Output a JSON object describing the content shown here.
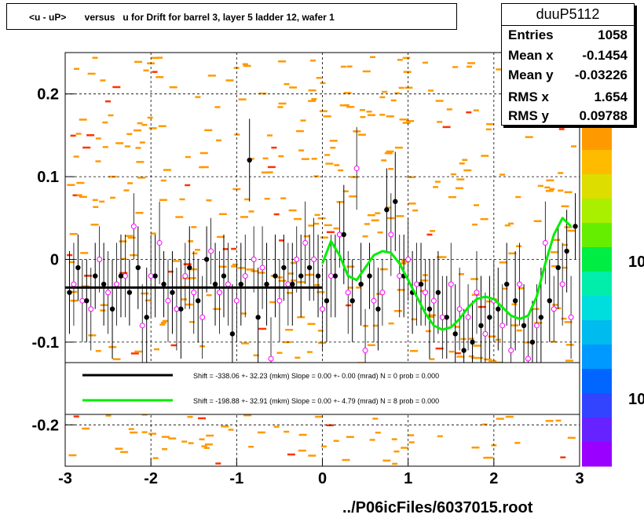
{
  "title": "<u - uP>       versus   u for Drift for barrel 3, layer 5 ladder 12, wafer 1",
  "stats": {
    "name": "duuP5112",
    "rows": [
      {
        "label": "Entries",
        "value": "1058"
      },
      {
        "label": "Mean x",
        "value": "-0.1454"
      },
      {
        "label": "Mean y",
        "value": "-0.03226"
      },
      {
        "label": "RMS x",
        "value": "1.654"
      },
      {
        "label": "RMS y",
        "value": "0.09788"
      }
    ]
  },
  "legend": [
    {
      "text": "Shift =  -338.06 +- 32.23 (mkm) Slope =     0.00 +- 0.00 (mrad)  N = 0 prob = 0.000",
      "color": "#000000"
    },
    {
      "text": "Shift =  -198.88 +- 32.91 (mkm) Slope =     0.00 +- 4.79 (mrad)  N = 8 prob = 0.000",
      "color": "#00ee00"
    }
  ],
  "footer": "../P06icFiles/6037015.root",
  "colors": {
    "heat_cell": "#ff9900",
    "profile": "#000000",
    "profile_alt": "#ff00ff",
    "fit_flat": "#000000",
    "fit_curve": "#00ee00"
  },
  "palette_labels": [
    "10",
    "10"
  ],
  "chart_data": {
    "type": "scatter",
    "xlim": [
      -3,
      3
    ],
    "ylim": [
      -0.25,
      0.25
    ],
    "x_ticks": [
      -3,
      -2,
      -1,
      0,
      1,
      2,
      3
    ],
    "y_ticks": [
      -0.2,
      -0.1,
      0,
      0.1,
      0.2
    ],
    "x_tick_labels": [
      "-3",
      "-2",
      "-1",
      "0",
      "1",
      "2",
      "3"
    ],
    "y_tick_labels": [
      "-0.2",
      "-0.1",
      "0",
      "0.1",
      "0.2"
    ],
    "grid": true,
    "profile_points": {
      "x": [
        -2.95,
        -2.85,
        -2.75,
        -2.65,
        -2.55,
        -2.45,
        -2.35,
        -2.25,
        -2.15,
        -2.05,
        -1.95,
        -1.85,
        -1.75,
        -1.65,
        -1.55,
        -1.45,
        -1.35,
        -1.25,
        -1.15,
        -1.05,
        -0.95,
        -0.85,
        -0.75,
        -0.65,
        -0.55,
        -0.45,
        -0.35,
        -0.25,
        -0.15,
        -0.05,
        0.05,
        0.15,
        0.25,
        0.35,
        0.45,
        0.55,
        0.65,
        0.75,
        0.85,
        0.95,
        1.05,
        1.15,
        1.25,
        1.35,
        1.45,
        1.55,
        1.65,
        1.75,
        1.85,
        1.95,
        2.05,
        2.15,
        2.25,
        2.35,
        2.45,
        2.55,
        2.65,
        2.75,
        2.85,
        2.95
      ],
      "y": [
        -0.04,
        -0.01,
        -0.05,
        -0.02,
        -0.03,
        -0.06,
        -0.02,
        -0.04,
        -0.01,
        -0.07,
        -0.02,
        -0.03,
        -0.04,
        -0.06,
        -0.01,
        -0.05,
        0.0,
        -0.03,
        -0.02,
        -0.09,
        -0.03,
        0.12,
        -0.07,
        -0.03,
        -0.02,
        -0.01,
        -0.03,
        -0.02,
        -0.01,
        -0.02,
        -0.05,
        -0.02,
        0.03,
        -0.05,
        -0.03,
        -0.02,
        -0.06,
        0.06,
        0.07,
        -0.02,
        -0.04,
        -0.03,
        -0.06,
        -0.04,
        -0.07,
        -0.09,
        -0.11,
        -0.1,
        -0.08,
        -0.07,
        -0.06,
        -0.03,
        -0.05,
        -0.08,
        -0.1,
        -0.07,
        -0.05,
        -0.01,
        0.01,
        0.04
      ],
      "err": [
        0.05,
        0.04,
        0.05,
        0.04,
        0.05,
        0.06,
        0.05,
        0.04,
        0.05,
        0.06,
        0.05,
        0.04,
        0.05,
        0.06,
        0.05,
        0.05,
        0.04,
        0.05,
        0.05,
        0.06,
        0.05,
        0.05,
        0.06,
        0.05,
        0.05,
        0.04,
        0.05,
        0.05,
        0.04,
        0.05,
        0.05,
        0.05,
        0.06,
        0.05,
        0.05,
        0.04,
        0.05,
        0.05,
        0.06,
        0.05,
        0.05,
        0.05,
        0.06,
        0.05,
        0.05,
        0.06,
        0.05,
        0.05,
        0.06,
        0.05,
        0.05,
        0.05,
        0.06,
        0.05,
        0.05,
        0.06,
        0.05,
        0.05,
        0.05,
        0.04
      ]
    },
    "alt_points": {
      "x": [
        -2.9,
        -2.8,
        -2.7,
        -2.6,
        -2.5,
        -2.4,
        -2.3,
        -2.2,
        -2.1,
        -2.0,
        -1.9,
        -1.8,
        -1.7,
        -1.6,
        -1.5,
        -1.4,
        -1.3,
        -1.2,
        -1.1,
        -1.0,
        -0.9,
        -0.8,
        -0.7,
        -0.6,
        -0.5,
        -0.4,
        -0.3,
        -0.2,
        -0.1,
        0.0,
        0.1,
        0.2,
        0.3,
        0.4,
        0.5,
        0.6,
        0.7,
        0.8,
        0.9,
        1.0,
        1.1,
        1.2,
        1.3,
        1.4,
        1.5,
        1.6,
        1.7,
        1.8,
        1.9,
        2.0,
        2.1,
        2.2,
        2.3,
        2.4,
        2.5,
        2.6,
        2.7,
        2.8,
        2.9
      ],
      "y": [
        -0.03,
        -0.05,
        -0.06,
        0.0,
        -0.04,
        -0.03,
        -0.02,
        0.04,
        -0.08,
        -0.02,
        0.02,
        -0.05,
        -0.06,
        -0.02,
        -0.04,
        -0.07,
        0.01,
        -0.04,
        -0.03,
        -0.05,
        -0.02,
        0.0,
        -0.01,
        -0.12,
        -0.05,
        -0.03,
        0.0,
        0.02,
        0.0,
        -0.06,
        -0.02,
        0.03,
        -0.04,
        0.11,
        -0.11,
        -0.05,
        -0.04,
        0.03,
        -0.02,
        0.0,
        -0.03,
        -0.04,
        -0.05,
        -0.07,
        -0.03,
        -0.06,
        -0.07,
        -0.04,
        -0.09,
        -0.05,
        -0.08,
        -0.11,
        -0.03,
        -0.12,
        -0.08,
        0.02,
        -0.06,
        -0.03,
        -0.07
      ],
      "err": [
        0.05,
        0.05,
        0.05,
        0.04,
        0.05,
        0.05,
        0.05,
        0.04,
        0.05,
        0.05,
        0.05,
        0.05,
        0.05,
        0.04,
        0.05,
        0.05,
        0.04,
        0.05,
        0.05,
        0.05,
        0.05,
        0.04,
        0.05,
        0.05,
        0.05,
        0.05,
        0.04,
        0.05,
        0.05,
        0.05,
        0.05,
        0.04,
        0.05,
        0.05,
        0.05,
        0.05,
        0.04,
        0.05,
        0.05,
        0.05,
        0.05,
        0.04,
        0.05,
        0.05,
        0.05,
        0.05,
        0.04,
        0.05,
        0.05,
        0.05,
        0.05,
        0.04,
        0.05,
        0.05,
        0.05,
        0.05,
        0.04,
        0.05,
        0.05
      ]
    },
    "fit_flat": {
      "x_range": [
        -3,
        0
      ],
      "y": -0.034
    },
    "fit_curve": {
      "x": [
        0.0,
        0.1,
        0.2,
        0.3,
        0.4,
        0.5,
        0.6,
        0.7,
        0.8,
        0.9,
        1.0,
        1.1,
        1.2,
        1.3,
        1.4,
        1.5,
        1.6,
        1.7,
        1.8,
        1.9,
        2.0,
        2.1,
        2.2,
        2.3,
        2.4,
        2.5,
        2.6,
        2.7,
        2.8,
        2.9
      ],
      "y": [
        -0.005,
        0.022,
        0.005,
        -0.02,
        -0.025,
        -0.01,
        0.005,
        0.01,
        0.008,
        -0.005,
        -0.025,
        -0.045,
        -0.065,
        -0.08,
        -0.085,
        -0.082,
        -0.072,
        -0.058,
        -0.048,
        -0.045,
        -0.048,
        -0.058,
        -0.068,
        -0.072,
        -0.068,
        -0.045,
        -0.005,
        0.03,
        0.05,
        0.04
      ]
    }
  }
}
